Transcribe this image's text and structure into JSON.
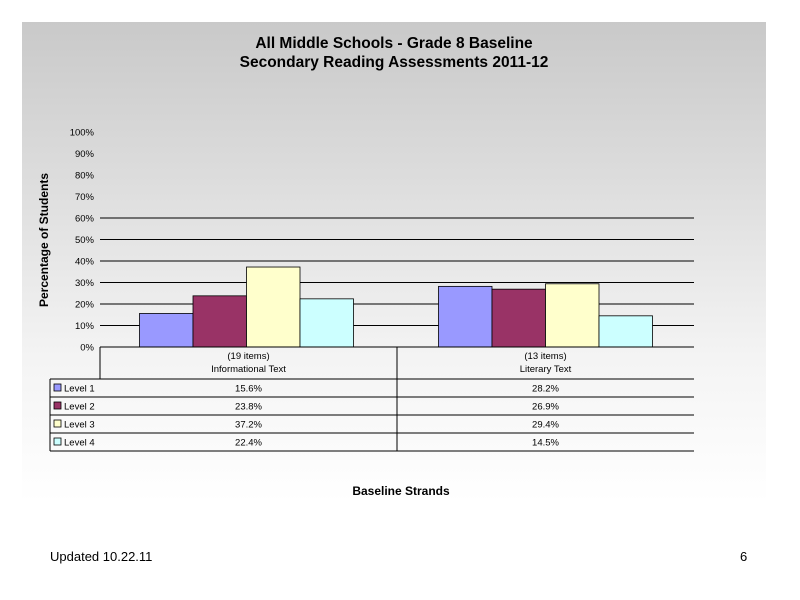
{
  "footer": {
    "updated": "Updated  10.22.11",
    "page_number": "6"
  },
  "chart_data": {
    "type": "bar",
    "title_lines": [
      "All Middle Schools - Grade 8 Baseline",
      "Secondary Reading Assessments 2011-12"
    ],
    "xlabel": "Baseline Strands",
    "ylabel": "Percentage of Students",
    "ylim": [
      0,
      100
    ],
    "yticks": [
      "0%",
      "10%",
      "20%",
      "30%",
      "40%",
      "50%",
      "60%",
      "70%",
      "80%",
      "90%",
      "100%"
    ],
    "gridlines_at": [
      10,
      20,
      30,
      40,
      50,
      60
    ],
    "categories": [
      {
        "line1": "(19 items)",
        "line2": "Informational Text"
      },
      {
        "line1": "(13 items)",
        "line2": "Literary Text"
      }
    ],
    "series": [
      {
        "name": "Level 1",
        "color": "#9999ff",
        "values": [
          15.6,
          28.2
        ],
        "labels": [
          "15.6%",
          "28.2%"
        ]
      },
      {
        "name": "Level 2",
        "color": "#993366",
        "values": [
          23.8,
          26.9
        ],
        "labels": [
          "23.8%",
          "26.9%"
        ]
      },
      {
        "name": "Level 3",
        "color": "#ffffcc",
        "values": [
          37.2,
          29.4
        ],
        "labels": [
          "37.2%",
          "29.4%"
        ]
      },
      {
        "name": "Level 4",
        "color": "#ccffff",
        "values": [
          22.4,
          14.5
        ],
        "labels": [
          "22.4%",
          "14.5%"
        ]
      }
    ],
    "legend_placement": "data-table",
    "grid": true
  }
}
